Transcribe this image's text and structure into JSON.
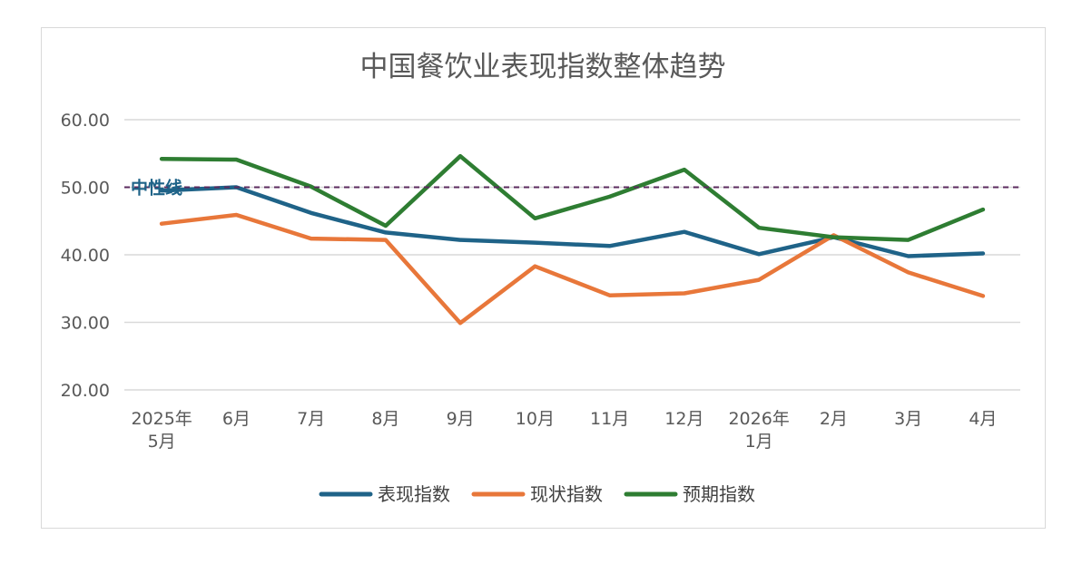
{
  "chart_data": {
    "type": "line",
    "title": "中国餐饮业表现指数整体趋势",
    "categories": [
      [
        "2025年",
        "5月"
      ],
      [
        "6月"
      ],
      [
        "7月"
      ],
      [
        "8月"
      ],
      [
        "9月"
      ],
      [
        "10月"
      ],
      [
        "11月"
      ],
      [
        "12月"
      ],
      [
        "2026年",
        "1月"
      ],
      [
        "2月"
      ],
      [
        "3月"
      ],
      [
        "4月"
      ]
    ],
    "ylim": [
      20,
      60
    ],
    "yticks": [
      "20.00",
      "30.00",
      "40.00",
      "50.00",
      "60.00"
    ],
    "ytick_values": [
      20,
      30,
      40,
      50,
      60
    ],
    "grid": true,
    "legend_position": "bottom",
    "reference_line": {
      "label": "中性线",
      "value": 50,
      "color": "#5b2a5e"
    },
    "series": [
      {
        "name": "表现指数",
        "color": "#1f6388",
        "values": [
          49.5,
          50.0,
          46.2,
          43.3,
          42.2,
          41.8,
          41.3,
          43.4,
          40.1,
          42.6,
          39.8,
          40.2
        ]
      },
      {
        "name": "现状指数",
        "color": "#e8773a",
        "values": [
          44.6,
          45.9,
          42.4,
          42.2,
          29.9,
          38.3,
          34.0,
          34.3,
          36.3,
          42.9,
          37.4,
          33.9
        ]
      },
      {
        "name": "预期指数",
        "color": "#2e7d32",
        "values": [
          54.2,
          54.1,
          50.1,
          44.3,
          54.6,
          45.4,
          48.6,
          52.6,
          44.0,
          42.6,
          42.2,
          46.7
        ]
      }
    ]
  }
}
